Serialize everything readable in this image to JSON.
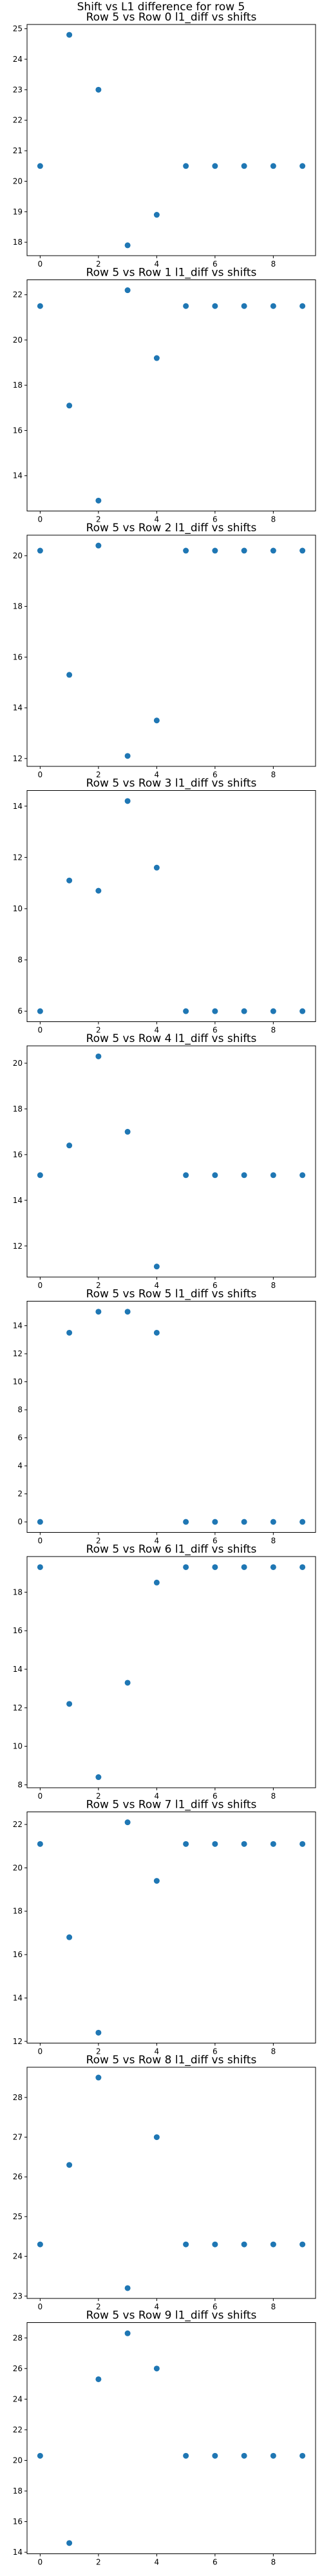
{
  "figure": {
    "title": "Shift vs L1 difference for row 5",
    "marker_color": "#1f77b4"
  },
  "chart_data": [
    {
      "type": "scatter",
      "title": "Row 5 vs Row 0 l1_diff vs shifts",
      "x": [
        0,
        1,
        2,
        3,
        4,
        5,
        6,
        7,
        8,
        9
      ],
      "y": [
        20.5,
        24.8,
        23.0,
        17.9,
        18.9,
        20.5,
        20.5,
        20.5,
        20.5,
        20.5
      ],
      "xticks": [
        0,
        2,
        4,
        6,
        8
      ],
      "yticks": [
        18,
        19,
        20,
        21,
        22,
        23,
        24,
        25
      ],
      "xlim": [
        -0.45,
        9.45
      ],
      "ylim": [
        17.56,
        25.14
      ]
    },
    {
      "type": "scatter",
      "title": "Row 5 vs Row 1 l1_diff vs shifts",
      "x": [
        0,
        1,
        2,
        3,
        4,
        5,
        6,
        7,
        8,
        9
      ],
      "y": [
        21.5,
        17.1,
        12.9,
        22.2,
        19.2,
        21.5,
        21.5,
        21.5,
        21.5,
        21.5
      ],
      "xticks": [
        0,
        2,
        4,
        6,
        8
      ],
      "yticks": [
        14,
        16,
        18,
        20,
        22
      ],
      "xlim": [
        -0.45,
        9.45
      ],
      "ylim": [
        12.44,
        22.66
      ]
    },
    {
      "type": "scatter",
      "title": "Row 5 vs Row 2 l1_diff vs shifts",
      "x": [
        0,
        1,
        2,
        3,
        4,
        5,
        6,
        7,
        8,
        9
      ],
      "y": [
        20.2,
        15.3,
        20.4,
        12.1,
        13.5,
        20.2,
        20.2,
        20.2,
        20.2,
        20.2
      ],
      "xticks": [
        0,
        2,
        4,
        6,
        8
      ],
      "yticks": [
        12,
        14,
        16,
        18,
        20
      ],
      "xlim": [
        -0.45,
        9.45
      ],
      "ylim": [
        11.69,
        20.81
      ]
    },
    {
      "type": "scatter",
      "title": "Row 5 vs Row 3 l1_diff vs shifts",
      "x": [
        0,
        1,
        2,
        3,
        4,
        5,
        6,
        7,
        8,
        9
      ],
      "y": [
        6.0,
        11.1,
        10.7,
        14.2,
        11.6,
        6.0,
        6.0,
        6.0,
        6.0,
        6.0
      ],
      "xticks": [
        0,
        2,
        4,
        6,
        8
      ],
      "yticks": [
        6,
        8,
        10,
        12,
        14
      ],
      "xlim": [
        -0.45,
        9.45
      ],
      "ylim": [
        5.59,
        14.61
      ]
    },
    {
      "type": "scatter",
      "title": "Row 5 vs Row 4 l1_diff vs shifts",
      "x": [
        0,
        1,
        2,
        3,
        4,
        5,
        6,
        7,
        8,
        9
      ],
      "y": [
        15.1,
        16.4,
        20.3,
        17.0,
        11.1,
        15.1,
        15.1,
        15.1,
        15.1,
        15.1
      ],
      "xticks": [
        0,
        2,
        4,
        6,
        8
      ],
      "yticks": [
        12,
        14,
        16,
        18,
        20
      ],
      "xlim": [
        -0.45,
        9.45
      ],
      "ylim": [
        10.64,
        20.76
      ]
    },
    {
      "type": "scatter",
      "title": "Row 5 vs Row 5 l1_diff vs shifts",
      "x": [
        0,
        1,
        2,
        3,
        4,
        5,
        6,
        7,
        8,
        9
      ],
      "y": [
        0.0,
        13.5,
        15.0,
        15.0,
        13.5,
        0.0,
        0.0,
        0.0,
        0.0,
        0.0
      ],
      "xticks": [
        0,
        2,
        4,
        6,
        8
      ],
      "yticks": [
        0,
        2,
        4,
        6,
        8,
        10,
        12,
        14
      ],
      "xlim": [
        -0.45,
        9.45
      ],
      "ylim": [
        -0.75,
        15.75
      ]
    },
    {
      "type": "scatter",
      "title": "Row 5 vs Row 6 l1_diff vs shifts",
      "x": [
        0,
        1,
        2,
        3,
        4,
        5,
        6,
        7,
        8,
        9
      ],
      "y": [
        19.3,
        12.2,
        8.4,
        13.3,
        18.5,
        19.3,
        19.3,
        19.3,
        19.3,
        19.3
      ],
      "xticks": [
        0,
        2,
        4,
        6,
        8
      ],
      "yticks": [
        8,
        10,
        12,
        14,
        16,
        18
      ],
      "xlim": [
        -0.45,
        9.45
      ],
      "ylim": [
        7.85,
        19.85
      ]
    },
    {
      "type": "scatter",
      "title": "Row 5 vs Row 7 l1_diff vs shifts",
      "x": [
        0,
        1,
        2,
        3,
        4,
        5,
        6,
        7,
        8,
        9
      ],
      "y": [
        21.1,
        16.8,
        12.4,
        22.1,
        19.4,
        21.1,
        21.1,
        21.1,
        21.1,
        21.1
      ],
      "xticks": [
        0,
        2,
        4,
        6,
        8
      ],
      "yticks": [
        12,
        14,
        16,
        18,
        20,
        22
      ],
      "xlim": [
        -0.45,
        9.45
      ],
      "ylim": [
        11.92,
        22.58
      ]
    },
    {
      "type": "scatter",
      "title": "Row 5 vs Row 8 l1_diff vs shifts",
      "x": [
        0,
        1,
        2,
        3,
        4,
        5,
        6,
        7,
        8,
        9
      ],
      "y": [
        24.3,
        26.3,
        28.5,
        23.2,
        27.0,
        24.3,
        24.3,
        24.3,
        24.3,
        24.3
      ],
      "xticks": [
        0,
        2,
        4,
        6,
        8
      ],
      "yticks": [
        23,
        24,
        25,
        26,
        27,
        28
      ],
      "xlim": [
        -0.45,
        9.45
      ],
      "ylim": [
        22.94,
        28.76
      ]
    },
    {
      "type": "scatter",
      "title": "Row 5 vs Row 9 l1_diff vs shifts",
      "x": [
        0,
        1,
        2,
        3,
        4,
        5,
        6,
        7,
        8,
        9
      ],
      "y": [
        20.3,
        14.6,
        25.3,
        28.3,
        26.0,
        20.3,
        20.3,
        20.3,
        20.3,
        20.3
      ],
      "xticks": [
        0,
        2,
        4,
        6,
        8
      ],
      "yticks": [
        14,
        16,
        18,
        20,
        22,
        24,
        26,
        28
      ],
      "xlim": [
        -0.45,
        9.45
      ],
      "ylim": [
        13.9,
        29.0
      ]
    }
  ]
}
